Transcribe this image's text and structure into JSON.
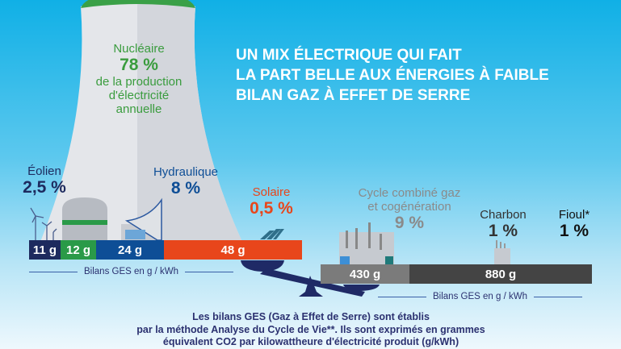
{
  "title": {
    "lines": [
      "UN MIX ÉLECTRIQUE QUI FAIT",
      "LA PART BELLE AUX ÉNERGIES À FAIBLE",
      "BILAN GAZ À EFFET DE SERRE"
    ]
  },
  "colors": {
    "nuclear": "#3a9c3e",
    "wind": "#1d2a5e",
    "hydro": "#0e4e96",
    "solar": "#e8461b",
    "gas": "#7b7b7b",
    "coal": "#444444",
    "oil": "#111111"
  },
  "sources": [
    {
      "name": "Nucléaire",
      "share": "78 %",
      "detail": [
        "de la production",
        "d'électricité",
        "annuelle"
      ]
    },
    {
      "name": "Éolien",
      "share": "2,5 %",
      "ges": "11 g"
    },
    {
      "name": "Hydraulique",
      "share": "8 %",
      "ges": "24 g"
    },
    {
      "name": "Solaire",
      "share": "0,5 %",
      "ges": "48 g"
    },
    {
      "name_lines": [
        "Cycle combiné gaz",
        "et cogénération"
      ],
      "share": "9 %",
      "ges": "430 g"
    },
    {
      "name": "Charbon",
      "share": "1 %",
      "ges": "880 g"
    },
    {
      "name": "Fioul*",
      "share": "1 %"
    }
  ],
  "nuclear_ges": "12 g",
  "unit_label": "Bilans GES en g / kWh",
  "footnote": [
    "Les bilans GES (Gaz à Effet de Serre) sont établis",
    "par la méthode Analyse du Cycle de Vie**. Ils sont exprimés en grammes",
    "équivalent CO2 par kilowattheure d'électricité produit (g/kWh)"
  ]
}
